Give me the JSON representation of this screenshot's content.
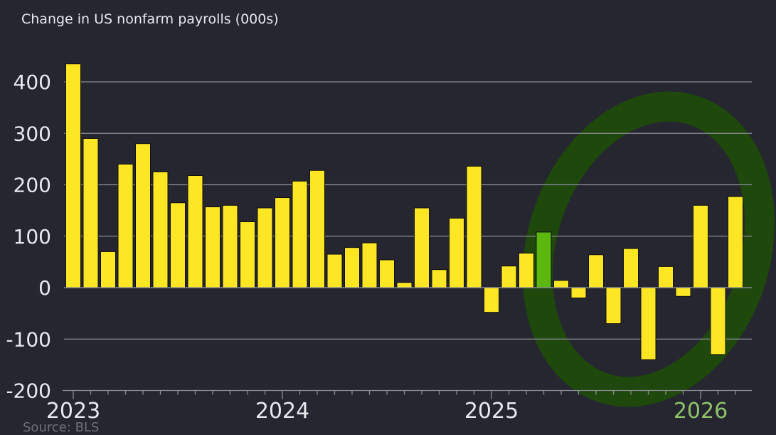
{
  "chart_data": {
    "type": "bar",
    "title": "Change in US nonfarm payrolls (000s)",
    "source": "Source: BLS",
    "categories": [
      "2023-01",
      "2023-02",
      "2023-03",
      "2023-04",
      "2023-05",
      "2023-06",
      "2023-07",
      "2023-08",
      "2023-09",
      "2023-10",
      "2023-11",
      "2023-12",
      "2024-01",
      "2024-02",
      "2024-03",
      "2024-04",
      "2024-05",
      "2024-06",
      "2024-07",
      "2024-08",
      "2024-09",
      "2024-10",
      "2024-11",
      "2024-12",
      "2025-01",
      "2025-02",
      "2025-03",
      "2025-04",
      "2025-05",
      "2025-06",
      "2025-07",
      "2025-08",
      "2025-09",
      "2025-10",
      "2025-11",
      "2025-12",
      "2026-01",
      "2026-02",
      "2026-03"
    ],
    "values": [
      435,
      290,
      70,
      240,
      280,
      225,
      165,
      218,
      157,
      160,
      128,
      155,
      175,
      207,
      228,
      65,
      78,
      87,
      54,
      10,
      155,
      35,
      135,
      236,
      -48,
      42,
      67,
      108,
      14,
      -20,
      64,
      -70,
      76,
      -140,
      41,
      -17,
      160,
      -130,
      177
    ],
    "ylim": [
      -200,
      440
    ],
    "yticks": [
      -200,
      -100,
      0,
      100,
      200,
      300,
      400
    ],
    "ytick_labels": [
      "-200",
      "-100",
      "0",
      "100",
      "200",
      "300",
      "400"
    ],
    "xtick_labels": [
      "2023",
      "2024",
      "2025",
      "2026"
    ],
    "grid": true,
    "colors": {
      "bar": "#fde725",
      "highlight_bar": "#5cb80f",
      "background": "#25262f",
      "grid": "#8a8b94",
      "annotation_circle": "#1f4a0c"
    },
    "annotation": "hand-drawn green circle around 2025-05 to 2026-03"
  }
}
